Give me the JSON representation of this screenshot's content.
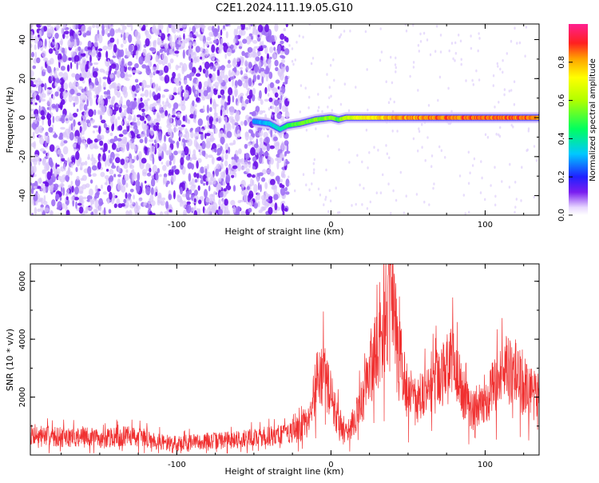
{
  "title": "C2E1.2024.111.19.05.G10",
  "colors": {
    "snr_line": "#f03030",
    "axis": "#000000",
    "track_core": "#f03030",
    "noise": "#7a1ef0"
  },
  "chart_data": [
    {
      "type": "heatmap",
      "xlabel": "Height of straight line (km)",
      "ylabel": "Frequency (Hz)",
      "xlim": [
        -195,
        135
      ],
      "ylim": [
        -50,
        48
      ],
      "xticks": [
        -100,
        0,
        100
      ],
      "yticks": [
        -40,
        -20,
        0,
        20,
        40
      ],
      "xtick_labels": [
        "-100",
        "0",
        "100"
      ],
      "ytick_labels": [
        "-40",
        "-20",
        "0",
        "20",
        "40"
      ],
      "grid": false,
      "noise_region_x": [
        -195,
        -28
      ],
      "signal_track": {
        "x": [
          -50,
          -40,
          -33,
          -28,
          -20,
          -10,
          0,
          5,
          10,
          20,
          30,
          40,
          60,
          80,
          100,
          120,
          135
        ],
        "freq_hz": [
          -2,
          -3,
          -6,
          -4,
          -3,
          -1,
          0,
          -1,
          0,
          0,
          0,
          0,
          0,
          0,
          0,
          0,
          0
        ],
        "amplitude": [
          0.3,
          0.35,
          0.4,
          0.5,
          0.55,
          0.6,
          0.6,
          0.55,
          0.7,
          0.75,
          0.8,
          0.85,
          0.9,
          0.92,
          0.92,
          0.92,
          0.92
        ]
      },
      "colorbar": {
        "label": "Normalized spectral amplitude",
        "range": [
          0,
          1
        ],
        "ticks": [
          0.0,
          0.2,
          0.4,
          0.6,
          0.8
        ],
        "tick_labels": [
          "0.0",
          "0.2",
          "0.4",
          "0.6",
          "0.8"
        ]
      }
    },
    {
      "type": "line",
      "xlabel": "Height of straight line (km)",
      "ylabel": "SNR (10 * v/v)",
      "xlim": [
        -195,
        135
      ],
      "ylim": [
        0,
        6600
      ],
      "xticks": [
        -100,
        0,
        100
      ],
      "yticks": [
        2000,
        4000,
        6000
      ],
      "xtick_labels": [
        "-100",
        "0",
        "100"
      ],
      "ytick_labels": [
        "2000",
        "4000",
        "6000"
      ],
      "grid": false,
      "series": [
        {
          "x": [
            -195,
            -180,
            -170,
            -160,
            -150,
            -140,
            -130,
            -120,
            -110,
            -100,
            -90,
            -80,
            -70,
            -60,
            -50,
            -40,
            -30,
            -20,
            -14,
            -12,
            -8,
            -5,
            0,
            5,
            10,
            15,
            20,
            25,
            30,
            35,
            37,
            40,
            43,
            46,
            50,
            55,
            60,
            65,
            70,
            75,
            78,
            80,
            85,
            90,
            95,
            100,
            105,
            110,
            115,
            120,
            125,
            130,
            135
          ],
          "values": [
            700,
            650,
            600,
            650,
            550,
            620,
            650,
            600,
            450,
            400,
            450,
            480,
            500,
            550,
            600,
            650,
            750,
            900,
            1200,
            1800,
            3000,
            2800,
            2000,
            1200,
            800,
            1200,
            1800,
            3000,
            3600,
            4400,
            5200,
            5500,
            4500,
            3200,
            2200,
            1900,
            2000,
            2300,
            2600,
            2900,
            3200,
            3000,
            2300,
            1600,
            1500,
            1800,
            2300,
            2800,
            3000,
            2800,
            2300,
            2100,
            2000
          ]
        }
      ]
    }
  ]
}
